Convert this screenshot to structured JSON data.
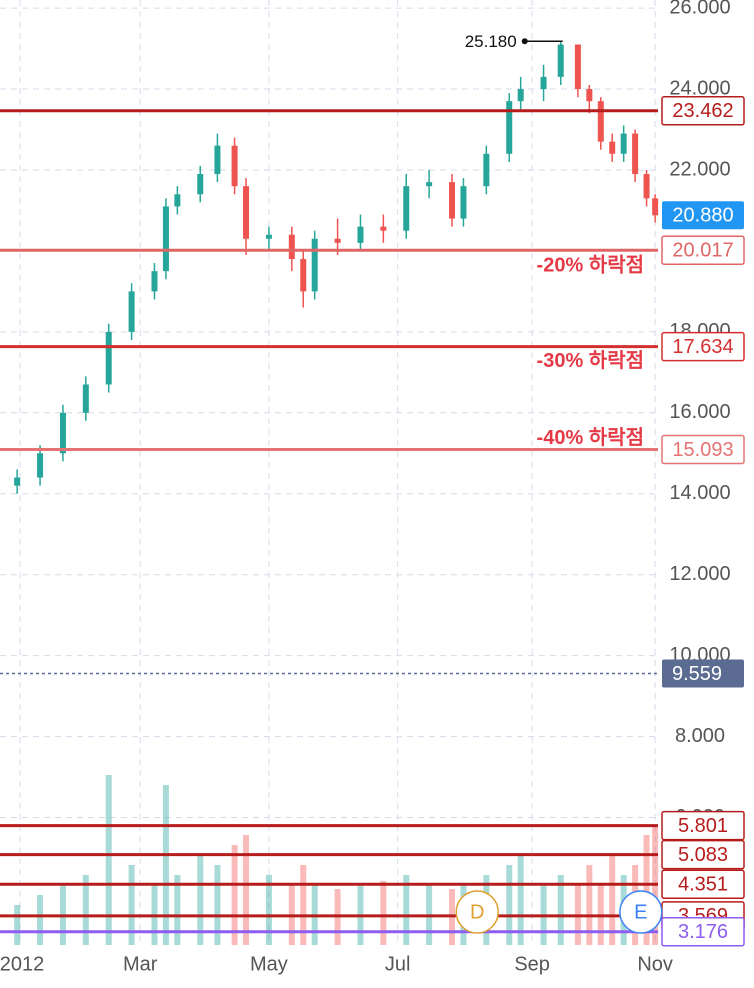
{
  "chart_data": {
    "type": "candlestick",
    "x": [
      0,
      4,
      8,
      12,
      16,
      20,
      24,
      26,
      28,
      32,
      35,
      38,
      40,
      44,
      48,
      50,
      52,
      56,
      60,
      64,
      68,
      72,
      76,
      78,
      82,
      86,
      88,
      92,
      95,
      98,
      100,
      102,
      104,
      106,
      108,
      110,
      111.5
    ],
    "open": [
      14.2,
      14.4,
      15.0,
      16.0,
      16.7,
      18.0,
      19.0,
      19.5,
      21.1,
      21.4,
      21.9,
      22.6,
      21.6,
      20.3,
      20.4,
      19.8,
      19.0,
      20.3,
      20.2,
      20.6,
      20.5,
      21.6,
      21.7,
      20.8,
      21.6,
      22.4,
      23.7,
      24.0,
      24.3,
      25.1,
      24.0,
      23.7,
      22.7,
      22.4,
      22.9,
      21.9,
      21.3
    ],
    "high": [
      14.6,
      15.2,
      16.2,
      16.9,
      18.2,
      19.2,
      19.7,
      21.3,
      21.6,
      22.1,
      22.9,
      22.8,
      21.8,
      20.6,
      20.6,
      20.0,
      20.5,
      20.8,
      20.9,
      20.9,
      21.9,
      22.0,
      21.9,
      21.8,
      22.6,
      23.9,
      24.3,
      24.6,
      25.18,
      25.1,
      24.1,
      23.8,
      22.9,
      23.1,
      23.0,
      22.0,
      21.4
    ],
    "low": [
      14.0,
      14.2,
      14.8,
      15.8,
      16.5,
      17.8,
      18.8,
      19.3,
      20.9,
      21.2,
      21.7,
      21.4,
      19.9,
      20.0,
      19.5,
      18.6,
      18.8,
      19.9,
      20.0,
      20.2,
      20.3,
      21.3,
      20.6,
      20.6,
      21.4,
      22.2,
      23.5,
      23.7,
      24.1,
      23.8,
      23.4,
      22.5,
      22.2,
      22.2,
      21.7,
      21.1,
      20.7
    ],
    "close": [
      14.4,
      15.0,
      16.0,
      16.7,
      18.0,
      19.0,
      19.5,
      21.1,
      21.4,
      21.9,
      22.6,
      21.6,
      20.3,
      20.4,
      19.8,
      19.0,
      20.3,
      20.2,
      20.6,
      20.5,
      21.6,
      21.7,
      20.8,
      21.6,
      22.4,
      23.7,
      24.0,
      24.3,
      25.1,
      24.0,
      23.7,
      22.7,
      22.4,
      22.9,
      21.9,
      21.3,
      20.88
    ],
    "volume": [
      20,
      25,
      30,
      35,
      85,
      40,
      30,
      80,
      35,
      45,
      40,
      50,
      55,
      35,
      30,
      40,
      30,
      28,
      30,
      32,
      35,
      30,
      28,
      30,
      35,
      40,
      45,
      30,
      35,
      30,
      40,
      30,
      45,
      35,
      40,
      55,
      60
    ],
    "volume_lim": [
      0,
      100
    ],
    "up_color": "#26a69a",
    "down_color": "#ef5350",
    "xlim": [
      -3,
      112
    ],
    "xticks": [
      {
        "value": 0.5,
        "label": "2012"
      },
      {
        "value": 21.5,
        "label": "Mar"
      },
      {
        "value": 44,
        "label": "May"
      },
      {
        "value": 66.5,
        "label": "Jul"
      },
      {
        "value": 90,
        "label": "Sep"
      },
      {
        "value": 111.5,
        "label": "Nov"
      }
    ],
    "ylim": [
      2.85,
      26.2
    ],
    "yticks": [
      {
        "value": 6,
        "label": "6.000"
      },
      {
        "value": 8,
        "label": "8.000"
      },
      {
        "value": 10,
        "label": "10.000"
      },
      {
        "value": 12,
        "label": "12.000"
      },
      {
        "value": 14,
        "label": "14.000"
      },
      {
        "value": 16,
        "label": "16.000"
      },
      {
        "value": 18,
        "label": "18.000"
      },
      {
        "value": 20,
        "label": "20.000"
      },
      {
        "value": 22,
        "label": "22.000"
      },
      {
        "value": 24,
        "label": "24.000"
      },
      {
        "value": 26,
        "label": "26.000"
      }
    ],
    "grid": true,
    "high_marker": {
      "value": 25.18,
      "label": "25.180"
    },
    "levels": [
      {
        "value": 23.462,
        "color": "#b71c1c"
      },
      {
        "value": 20.017,
        "color": "#e06666",
        "note": "-20% 하락점"
      },
      {
        "value": 17.634,
        "color": "#d32f2f",
        "note": "-30% 하락점"
      },
      {
        "value": 15.093,
        "color": "#e57373",
        "note": "-40% 하락점"
      },
      {
        "value": 5.801,
        "color": "#b71c1c"
      },
      {
        "value": 5.083,
        "color": "#b71c1c"
      },
      {
        "value": 4.351,
        "color": "#b71c1c"
      },
      {
        "value": 3.569,
        "color": "#b71c1c"
      },
      {
        "value": 3.176,
        "color": "#8e5cf0"
      }
    ],
    "last_price": {
      "value": 20.88,
      "label": "20.880",
      "color": "#2196f3"
    },
    "reference_price": {
      "value": 9.559,
      "color": "#5c6b91"
    },
    "events": [
      {
        "label": "D",
        "x": 80.4,
        "color": "#e0a030"
      },
      {
        "label": "E",
        "x": 109,
        "color": "#3b82f6"
      }
    ]
  }
}
